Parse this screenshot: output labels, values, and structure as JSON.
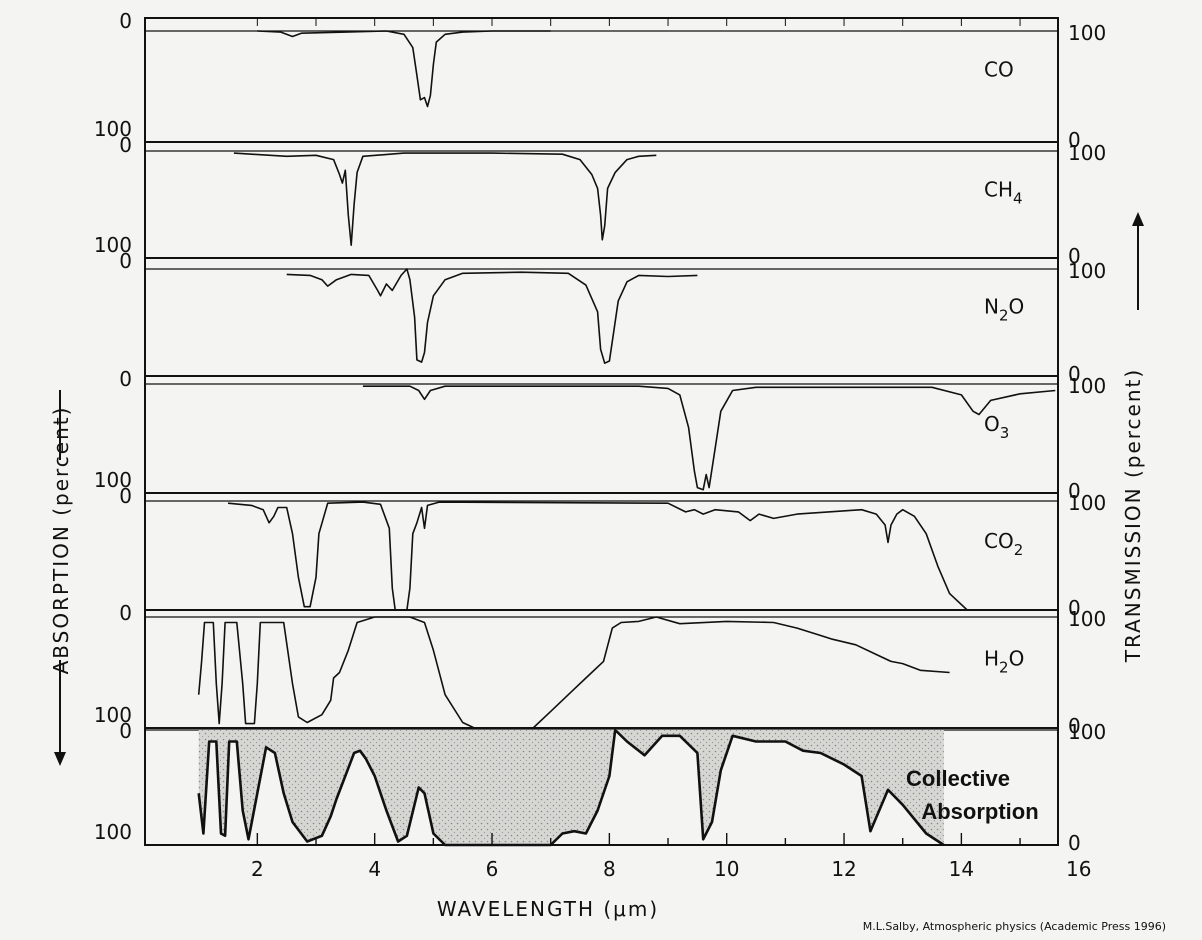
{
  "chart_data": {
    "type": "line",
    "xlabel": "WAVELENGTH (μm)",
    "ylabel_left": "ABSORPTION (percent)",
    "ylabel_right": "TRANSMISSION (percent)",
    "xlim": [
      1,
      16
    ],
    "x_ticks": [
      "2",
      "4",
      "6",
      "8",
      "10",
      "12",
      "14",
      "16"
    ],
    "left_tick_top": "0",
    "left_tick_bottom": "100",
    "right_tick_top": "100",
    "right_tick_bottom": "0",
    "credit": "M.L.Salby, Atmospheric physics  (Academic Press 1996)",
    "panels": [
      {
        "id": "co",
        "label": "CO",
        "label_base": "CO",
        "label_sub": "",
        "show_left_100": true,
        "show_right_0": true,
        "points": [
          [
            2,
            0
          ],
          [
            2.4,
            1
          ],
          [
            2.6,
            5
          ],
          [
            2.75,
            2
          ],
          [
            3.5,
            1
          ],
          [
            4.2,
            0
          ],
          [
            4.5,
            3
          ],
          [
            4.65,
            15
          ],
          [
            4.72,
            40
          ],
          [
            4.78,
            62
          ],
          [
            4.85,
            60
          ],
          [
            4.9,
            68
          ],
          [
            4.95,
            58
          ],
          [
            5.0,
            30
          ],
          [
            5.05,
            10
          ],
          [
            5.2,
            3
          ],
          [
            5.5,
            1
          ],
          [
            6.0,
            0
          ],
          [
            7.0,
            0
          ]
        ]
      },
      {
        "id": "ch4",
        "label": "CH4",
        "label_base": "CH",
        "label_sub": "4",
        "show_left_100": true,
        "show_right_0": true,
        "points": [
          [
            1.6,
            2
          ],
          [
            1.9,
            3
          ],
          [
            2.5,
            5
          ],
          [
            3.0,
            4
          ],
          [
            3.3,
            8
          ],
          [
            3.4,
            22
          ],
          [
            3.45,
            30
          ],
          [
            3.5,
            18
          ],
          [
            3.55,
            60
          ],
          [
            3.6,
            88
          ],
          [
            3.65,
            50
          ],
          [
            3.7,
            20
          ],
          [
            3.8,
            5
          ],
          [
            4.5,
            2
          ],
          [
            6.0,
            2
          ],
          [
            7.2,
            3
          ],
          [
            7.5,
            8
          ],
          [
            7.7,
            22
          ],
          [
            7.8,
            35
          ],
          [
            7.85,
            60
          ],
          [
            7.88,
            83
          ],
          [
            7.92,
            70
          ],
          [
            7.97,
            35
          ],
          [
            8.03,
            28
          ],
          [
            8.1,
            20
          ],
          [
            8.3,
            8
          ],
          [
            8.5,
            5
          ],
          [
            8.8,
            4
          ]
        ]
      },
      {
        "id": "n2o",
        "label": "N2O",
        "label_base": "N",
        "label_sub": "2",
        "label_tail": "O",
        "show_left_100": false,
        "show_right_0": true,
        "points": [
          [
            2.5,
            5
          ],
          [
            2.9,
            6
          ],
          [
            3.1,
            10
          ],
          [
            3.2,
            16
          ],
          [
            3.35,
            10
          ],
          [
            3.6,
            5
          ],
          [
            3.9,
            6
          ],
          [
            4.05,
            20
          ],
          [
            4.1,
            25
          ],
          [
            4.2,
            14
          ],
          [
            4.3,
            20
          ],
          [
            4.45,
            6
          ],
          [
            4.55,
            0
          ],
          [
            4.6,
            10
          ],
          [
            4.68,
            45
          ],
          [
            4.72,
            85
          ],
          [
            4.8,
            87
          ],
          [
            4.85,
            78
          ],
          [
            4.9,
            50
          ],
          [
            5.0,
            25
          ],
          [
            5.2,
            10
          ],
          [
            5.5,
            4
          ],
          [
            6.5,
            3
          ],
          [
            7.3,
            4
          ],
          [
            7.6,
            15
          ],
          [
            7.8,
            40
          ],
          [
            7.85,
            75
          ],
          [
            7.92,
            88
          ],
          [
            8.0,
            86
          ],
          [
            8.07,
            60
          ],
          [
            8.15,
            30
          ],
          [
            8.3,
            12
          ],
          [
            8.5,
            6
          ],
          [
            9.0,
            7
          ],
          [
            9.5,
            6
          ]
        ]
      },
      {
        "id": "o3",
        "label": "O3",
        "label_base": "O",
        "label_sub": "3",
        "show_left_100": true,
        "show_right_0": true,
        "points": [
          [
            3.8,
            2
          ],
          [
            4.6,
            2
          ],
          [
            4.75,
            6
          ],
          [
            4.85,
            14
          ],
          [
            4.95,
            6
          ],
          [
            5.2,
            2
          ],
          [
            8.5,
            2
          ],
          [
            9.0,
            4
          ],
          [
            9.2,
            10
          ],
          [
            9.35,
            40
          ],
          [
            9.45,
            80
          ],
          [
            9.5,
            95
          ],
          [
            9.6,
            97
          ],
          [
            9.65,
            83
          ],
          [
            9.7,
            95
          ],
          [
            9.8,
            60
          ],
          [
            9.9,
            25
          ],
          [
            10.1,
            6
          ],
          [
            10.5,
            3
          ],
          [
            13.5,
            3
          ],
          [
            14.0,
            10
          ],
          [
            14.2,
            25
          ],
          [
            14.3,
            28
          ],
          [
            14.5,
            15
          ],
          [
            15,
            9
          ],
          [
            15.6,
            6
          ]
        ]
      },
      {
        "id": "co2",
        "label": "CO2",
        "label_base": "CO",
        "label_sub": "2",
        "show_left_100": false,
        "show_right_0": true,
        "points": [
          [
            1.5,
            2
          ],
          [
            1.9,
            4
          ],
          [
            2.1,
            8
          ],
          [
            2.2,
            20
          ],
          [
            2.28,
            14
          ],
          [
            2.35,
            6
          ],
          [
            2.5,
            6
          ],
          [
            2.6,
            30
          ],
          [
            2.7,
            70
          ],
          [
            2.8,
            97
          ],
          [
            2.9,
            97
          ],
          [
            3.0,
            70
          ],
          [
            3.05,
            30
          ],
          [
            3.2,
            2
          ],
          [
            3.8,
            1
          ],
          [
            4.1,
            3
          ],
          [
            4.25,
            25
          ],
          [
            4.3,
            80
          ],
          [
            4.35,
            100
          ],
          [
            4.55,
            100
          ],
          [
            4.6,
            80
          ],
          [
            4.65,
            30
          ],
          [
            4.72,
            20
          ],
          [
            4.8,
            6
          ],
          [
            4.85,
            25
          ],
          [
            4.9,
            4
          ],
          [
            5.1,
            1
          ],
          [
            9.0,
            2
          ],
          [
            9.3,
            10
          ],
          [
            9.45,
            8
          ],
          [
            9.6,
            12
          ],
          [
            9.8,
            8
          ],
          [
            10.2,
            10
          ],
          [
            10.4,
            18
          ],
          [
            10.55,
            12
          ],
          [
            10.8,
            16
          ],
          [
            11.2,
            12
          ],
          [
            12.3,
            8
          ],
          [
            12.55,
            12
          ],
          [
            12.7,
            22
          ],
          [
            12.75,
            38
          ],
          [
            12.8,
            22
          ],
          [
            12.9,
            12
          ],
          [
            13.0,
            8
          ],
          [
            13.2,
            14
          ],
          [
            13.4,
            30
          ],
          [
            13.6,
            60
          ],
          [
            13.8,
            85
          ],
          [
            14.1,
            100
          ]
        ]
      },
      {
        "id": "h2o",
        "label": "H2O",
        "label_base": "H",
        "label_sub": "2",
        "label_tail": "O",
        "show_left_100": true,
        "show_right_0": true,
        "points": [
          [
            1.0,
            70
          ],
          [
            1.05,
            40
          ],
          [
            1.1,
            5
          ],
          [
            1.25,
            5
          ],
          [
            1.3,
            60
          ],
          [
            1.35,
            96
          ],
          [
            1.4,
            60
          ],
          [
            1.45,
            5
          ],
          [
            1.65,
            5
          ],
          [
            1.75,
            60
          ],
          [
            1.8,
            96
          ],
          [
            1.95,
            96
          ],
          [
            2.0,
            60
          ],
          [
            2.05,
            5
          ],
          [
            2.45,
            5
          ],
          [
            2.6,
            60
          ],
          [
            2.7,
            90
          ],
          [
            2.85,
            95
          ],
          [
            3.1,
            88
          ],
          [
            3.25,
            75
          ],
          [
            3.3,
            55
          ],
          [
            3.4,
            50
          ],
          [
            3.55,
            30
          ],
          [
            3.7,
            5
          ],
          [
            4.0,
            0
          ],
          [
            4.6,
            0
          ],
          [
            4.85,
            5
          ],
          [
            5.0,
            30
          ],
          [
            5.2,
            70
          ],
          [
            5.5,
            95
          ],
          [
            5.7,
            100
          ],
          [
            6.7,
            100
          ],
          [
            7.0,
            85
          ],
          [
            7.4,
            65
          ],
          [
            7.6,
            55
          ],
          [
            7.9,
            40
          ],
          [
            8.05,
            10
          ],
          [
            8.2,
            5
          ],
          [
            8.5,
            4
          ],
          [
            8.8,
            0
          ],
          [
            9.2,
            6
          ],
          [
            10.0,
            4
          ],
          [
            10.8,
            5
          ],
          [
            11.2,
            10
          ],
          [
            11.5,
            15
          ],
          [
            11.8,
            20
          ],
          [
            12.2,
            25
          ],
          [
            12.6,
            35
          ],
          [
            12.8,
            40
          ],
          [
            13.0,
            42
          ],
          [
            13.3,
            48
          ],
          [
            13.8,
            50
          ]
        ]
      },
      {
        "id": "collective",
        "label": "Collective Absorption",
        "label_line1": "Collective",
        "label_line2": "Absorption",
        "filled": true,
        "show_left_100": true,
        "show_right_0": true,
        "points": [
          [
            1.0,
            55
          ],
          [
            1.08,
            90
          ],
          [
            1.18,
            10
          ],
          [
            1.3,
            10
          ],
          [
            1.38,
            90
          ],
          [
            1.45,
            92
          ],
          [
            1.52,
            10
          ],
          [
            1.65,
            10
          ],
          [
            1.75,
            70
          ],
          [
            1.85,
            95
          ],
          [
            2.0,
            55
          ],
          [
            2.15,
            15
          ],
          [
            2.3,
            20
          ],
          [
            2.45,
            55
          ],
          [
            2.6,
            80
          ],
          [
            2.85,
            97
          ],
          [
            3.1,
            92
          ],
          [
            3.25,
            75
          ],
          [
            3.35,
            60
          ],
          [
            3.5,
            40
          ],
          [
            3.65,
            20
          ],
          [
            3.75,
            18
          ],
          [
            3.85,
            25
          ],
          [
            4.0,
            40
          ],
          [
            4.2,
            70
          ],
          [
            4.4,
            97
          ],
          [
            4.55,
            92
          ],
          [
            4.75,
            50
          ],
          [
            4.85,
            55
          ],
          [
            5.0,
            90
          ],
          [
            5.2,
            100
          ],
          [
            7.0,
            100
          ],
          [
            7.2,
            90
          ],
          [
            7.4,
            88
          ],
          [
            7.6,
            90
          ],
          [
            7.8,
            70
          ],
          [
            8.0,
            40
          ],
          [
            8.1,
            0
          ],
          [
            8.3,
            10
          ],
          [
            8.6,
            22
          ],
          [
            8.9,
            5
          ],
          [
            9.2,
            5
          ],
          [
            9.5,
            20
          ],
          [
            9.6,
            95
          ],
          [
            9.75,
            80
          ],
          [
            9.9,
            35
          ],
          [
            10.1,
            5
          ],
          [
            10.5,
            10
          ],
          [
            11.0,
            10
          ],
          [
            11.3,
            18
          ],
          [
            11.6,
            20
          ],
          [
            12.0,
            30
          ],
          [
            12.3,
            40
          ],
          [
            12.45,
            88
          ],
          [
            12.6,
            70
          ],
          [
            12.75,
            52
          ],
          [
            13.0,
            65
          ],
          [
            13.4,
            90
          ],
          [
            13.7,
            100
          ]
        ]
      }
    ]
  }
}
